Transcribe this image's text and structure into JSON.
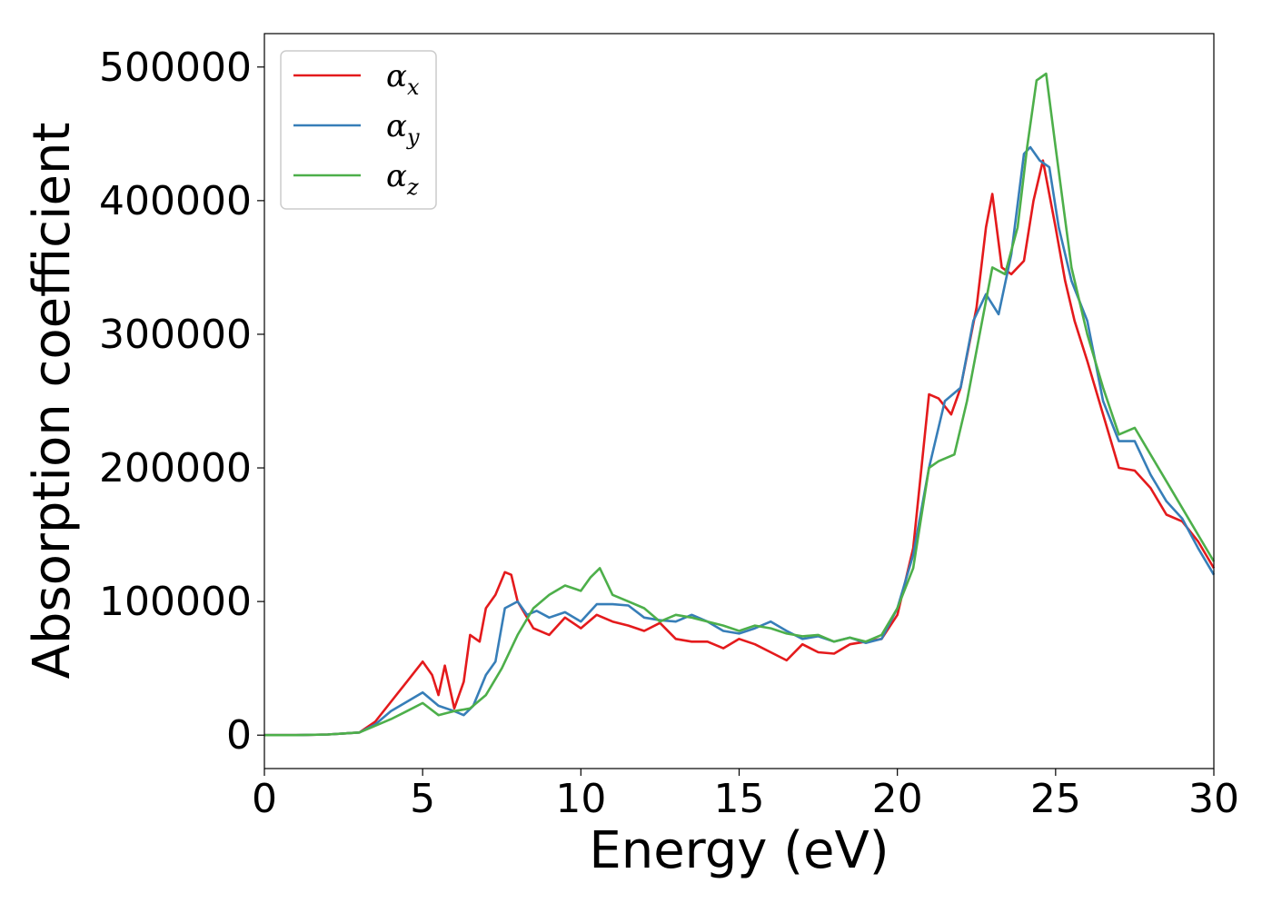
{
  "chart_data": {
    "type": "line",
    "xlabel": "Energy (eV)",
    "ylabel": "Absorption coefficient",
    "xlim": [
      0,
      30
    ],
    "ylim": [
      -25000,
      525000
    ],
    "x_ticks": [
      0,
      5,
      10,
      15,
      20,
      25,
      30
    ],
    "x_tick_labels": [
      "0",
      "5",
      "10",
      "15",
      "20",
      "25",
      "30"
    ],
    "y_ticks": [
      0,
      100000,
      200000,
      300000,
      400000,
      500000
    ],
    "y_tick_labels": [
      "0",
      "100000",
      "200000",
      "300000",
      "400000",
      "500000"
    ],
    "grid": false,
    "legend": {
      "position": "top-left",
      "entries": [
        {
          "base": "α",
          "sub": "x"
        },
        {
          "base": "α",
          "sub": "y"
        },
        {
          "base": "α",
          "sub": "z"
        }
      ]
    },
    "series": [
      {
        "name": "αx",
        "color": "#e41a1c",
        "x": [
          0,
          1,
          2,
          3,
          3.5,
          4,
          4.5,
          5,
          5.3,
          5.5,
          5.7,
          6,
          6.3,
          6.5,
          6.8,
          7,
          7.3,
          7.6,
          7.8,
          8,
          8.5,
          9,
          9.5,
          10,
          10.5,
          11,
          11.5,
          12,
          12.5,
          13,
          13.5,
          14,
          14.5,
          15,
          15.5,
          16,
          16.5,
          17,
          17.5,
          18,
          18.5,
          19,
          19.5,
          20,
          20.5,
          21,
          21.3,
          21.7,
          22,
          22.5,
          22.8,
          23,
          23.3,
          23.6,
          24,
          24.3,
          24.6,
          25,
          25.3,
          25.6,
          26,
          26.5,
          27,
          27.5,
          28,
          28.5,
          29,
          29.5,
          30
        ],
        "y": [
          0,
          0,
          500,
          2000,
          10000,
          25000,
          40000,
          55000,
          45000,
          30000,
          52000,
          20000,
          40000,
          75000,
          70000,
          95000,
          105000,
          122000,
          120000,
          100000,
          80000,
          75000,
          88000,
          80000,
          90000,
          85000,
          82000,
          78000,
          84000,
          72000,
          70000,
          70000,
          65000,
          72000,
          68000,
          62000,
          56000,
          68000,
          62000,
          61000,
          68000,
          70000,
          72000,
          90000,
          140000,
          255000,
          252000,
          240000,
          260000,
          320000,
          380000,
          405000,
          350000,
          345000,
          355000,
          400000,
          430000,
          380000,
          340000,
          310000,
          280000,
          240000,
          200000,
          198000,
          185000,
          165000,
          160000,
          145000,
          125000
        ]
      },
      {
        "name": "αy",
        "color": "#377eb8",
        "x": [
          0,
          1,
          2,
          3,
          3.5,
          4,
          4.5,
          5,
          5.5,
          6,
          6.3,
          6.6,
          7,
          7.3,
          7.6,
          8,
          8.3,
          8.6,
          9,
          9.5,
          10,
          10.5,
          11,
          11.5,
          12,
          12.5,
          13,
          13.5,
          14,
          14.5,
          15,
          15.5,
          16,
          16.5,
          17,
          17.5,
          18,
          18.5,
          19,
          19.5,
          20,
          20.5,
          21,
          21.5,
          22,
          22.4,
          22.8,
          23.2,
          23.6,
          24,
          24.2,
          24.5,
          24.8,
          25.1,
          25.5,
          26,
          26.5,
          27,
          27.5,
          28,
          28.5,
          29,
          29.5,
          30
        ],
        "y": [
          0,
          0,
          500,
          2000,
          8000,
          18000,
          25000,
          32000,
          22000,
          18000,
          15000,
          22000,
          45000,
          55000,
          95000,
          100000,
          90000,
          93000,
          88000,
          92000,
          85000,
          98000,
          98000,
          97000,
          88000,
          86000,
          85000,
          90000,
          85000,
          78000,
          76000,
          80000,
          85000,
          78000,
          72000,
          74000,
          70000,
          73000,
          69000,
          72000,
          95000,
          135000,
          200000,
          250000,
          260000,
          310000,
          330000,
          315000,
          360000,
          435000,
          440000,
          430000,
          425000,
          380000,
          340000,
          310000,
          250000,
          220000,
          220000,
          195000,
          175000,
          162000,
          140000,
          120000
        ]
      },
      {
        "name": "αz",
        "color": "#4daf4a",
        "x": [
          0,
          1,
          2,
          3,
          3.5,
          4,
          4.5,
          5,
          5.5,
          6,
          6.5,
          7,
          7.5,
          8,
          8.5,
          9,
          9.5,
          10,
          10.3,
          10.6,
          11,
          11.5,
          12,
          12.5,
          13,
          13.5,
          14,
          14.5,
          15,
          15.5,
          16,
          16.5,
          17,
          17.5,
          18,
          18.5,
          19,
          19.5,
          20,
          20.5,
          21,
          21.3,
          21.8,
          22.2,
          22.6,
          23,
          23.4,
          23.8,
          24.1,
          24.4,
          24.7,
          25,
          25.5,
          26,
          26.5,
          27,
          27.5,
          28,
          28.5,
          29,
          29.5,
          30
        ],
        "y": [
          0,
          0,
          500,
          2000,
          7000,
          12000,
          18000,
          24000,
          15000,
          18000,
          20000,
          30000,
          50000,
          75000,
          95000,
          105000,
          112000,
          108000,
          118000,
          125000,
          105000,
          100000,
          95000,
          85000,
          90000,
          88000,
          85000,
          82000,
          78000,
          82000,
          80000,
          76000,
          74000,
          75000,
          70000,
          73000,
          70000,
          75000,
          95000,
          125000,
          200000,
          205000,
          210000,
          250000,
          300000,
          350000,
          345000,
          380000,
          440000,
          490000,
          495000,
          440000,
          350000,
          300000,
          260000,
          225000,
          230000,
          210000,
          190000,
          170000,
          150000,
          130000
        ]
      }
    ]
  }
}
